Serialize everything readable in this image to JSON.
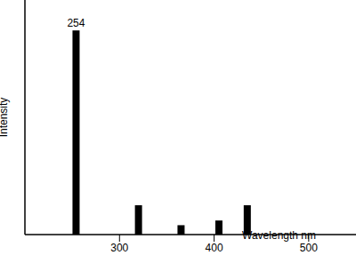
{
  "chart_data": {
    "type": "bar",
    "x_label": "Wavelength nm",
    "y_label": "Intensity",
    "x": [
      254,
      320,
      365,
      405,
      435
    ],
    "values": [
      87,
      12.5,
      4,
      6,
      12.5
    ],
    "color": "#000000",
    "xlim": [
      200,
      550
    ],
    "xticks": [
      300,
      400,
      500
    ],
    "ylim": [
      0,
      100
    ],
    "tick_labels": "x",
    "grid": false,
    "annotations": [
      {
        "text": "254",
        "x": 254,
        "y": 87
      }
    ]
  }
}
